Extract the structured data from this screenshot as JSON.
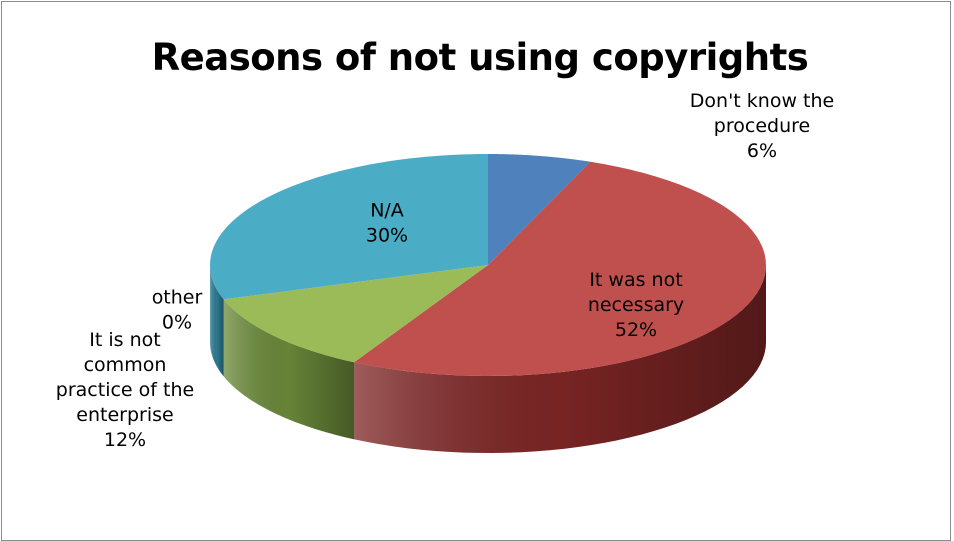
{
  "chart_data": {
    "type": "pie",
    "title": "Reasons of not using copyrights",
    "slices": [
      {
        "label_lines": [
          "Don't know the",
          "procedure"
        ],
        "pct_text": "6%",
        "value": 6,
        "color": "#4f81bd",
        "side": "#3a5f8c"
      },
      {
        "label_lines": [
          "It was not",
          "necessary"
        ],
        "pct_text": "52%",
        "value": 52,
        "color": "#c0504d",
        "side": "#7e2625"
      },
      {
        "label_lines": [
          "It is not",
          "common",
          "practice of the",
          "enterprise"
        ],
        "pct_text": "12%",
        "value": 12,
        "color": "#9bbb59",
        "side": "#6b8a3a"
      },
      {
        "label_lines": [
          "other"
        ],
        "pct_text": "0%",
        "value": 0,
        "color": "#8064a2",
        "side": "#5a4576"
      },
      {
        "label_lines": [
          "N/A"
        ],
        "pct_text": "30%",
        "value": 30,
        "color": "#4bacc6",
        "side": "#2f7f95"
      }
    ]
  }
}
